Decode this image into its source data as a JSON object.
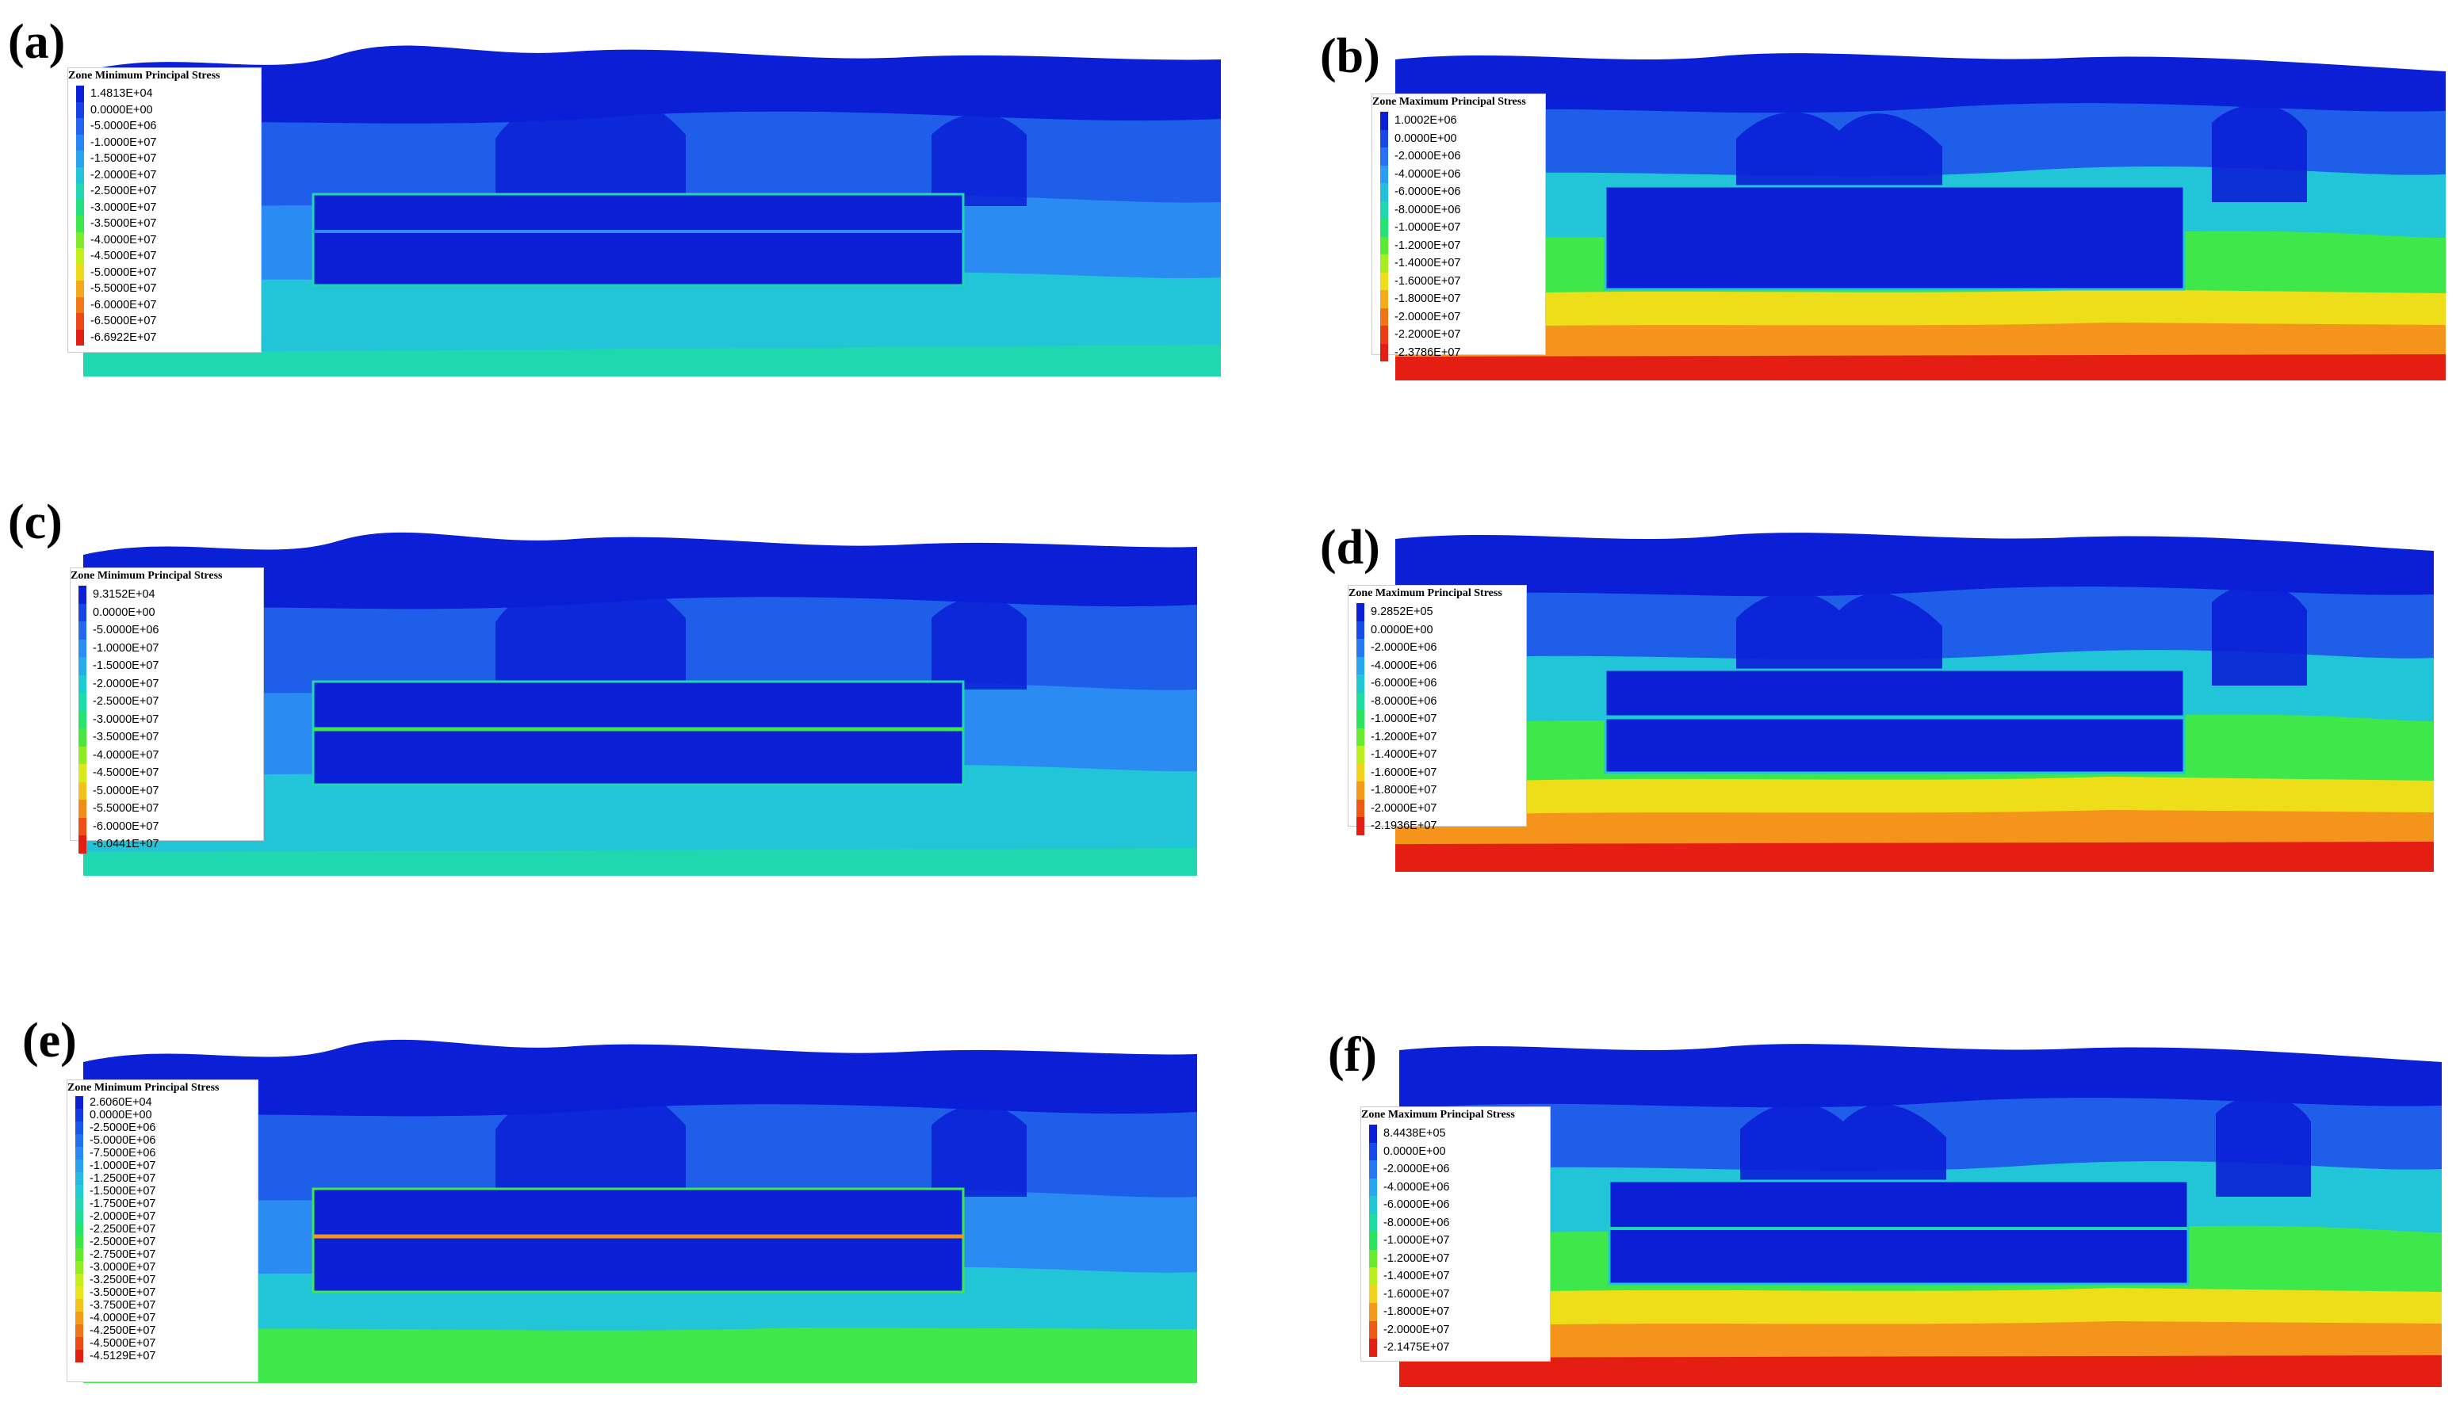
{
  "panels": [
    {
      "letter": "(a)",
      "legend_title": "Zone Minimum Principal Stress",
      "legend_entries": [
        "1.4813E+04",
        "0.0000E+00",
        "-5.0000E+06",
        "-1.0000E+07",
        "-1.5000E+07",
        "-2.0000E+07",
        "-2.5000E+07",
        "-3.0000E+07",
        "-3.5000E+07",
        "-4.0000E+07",
        "-4.5000E+07",
        "-5.0000E+07",
        "-5.5000E+07",
        "-6.0000E+07",
        "-6.5000E+07",
        "-6.6922E+07"
      ],
      "legend_colors": [
        "#0a1fd6",
        "#1542e6",
        "#2364f0",
        "#2b86f5",
        "#27a4ec",
        "#22c4d8",
        "#1fd8b0",
        "#22e080",
        "#3ee84a",
        "#7cec2a",
        "#c4ee1a",
        "#f0d81a",
        "#f4a81a",
        "#f27818",
        "#ee4816",
        "#e41e12"
      ]
    },
    {
      "letter": "(b)",
      "legend_title": "Zone Maximum Principal Stress",
      "legend_entries": [
        "1.0002E+06",
        "0.0000E+00",
        "-2.0000E+06",
        "-4.0000E+06",
        "-6.0000E+06",
        "-8.0000E+06",
        "-1.0000E+07",
        "-1.2000E+07",
        "-1.4000E+07",
        "-1.6000E+07",
        "-1.8000E+07",
        "-2.0000E+07",
        "-2.2000E+07",
        "-2.3786E+07"
      ],
      "legend_colors": [
        "#0a1fd6",
        "#1747e8",
        "#2672f2",
        "#2b9cf2",
        "#22c0dc",
        "#1fd8b0",
        "#26e472",
        "#5aea34",
        "#a6ee1e",
        "#eede1a",
        "#f4aa1a",
        "#f27218",
        "#ec3c14",
        "#e41e12"
      ]
    },
    {
      "letter": "(c)",
      "legend_title": "Zone Minimum Principal Stress",
      "legend_entries": [
        "9.3152E+04",
        "0.0000E+00",
        "-5.0000E+06",
        "-1.0000E+07",
        "-1.5000E+07",
        "-2.0000E+07",
        "-2.5000E+07",
        "-3.0000E+07",
        "-3.5000E+07",
        "-4.0000E+07",
        "-4.5000E+07",
        "-5.0000E+07",
        "-5.5000E+07",
        "-6.0000E+07",
        "-6.0441E+07"
      ],
      "legend_colors": [
        "#0a1fd6",
        "#1644e6",
        "#2468f0",
        "#2b8cf5",
        "#25acea",
        "#20cad2",
        "#1fdca4",
        "#26e46c",
        "#4ae83c",
        "#90ec22",
        "#d8ea1a",
        "#f4c01a",
        "#f28c18",
        "#ee5016",
        "#e41e12"
      ]
    },
    {
      "letter": "(d)",
      "legend_title": "Zone Maximum Principal Stress",
      "legend_entries": [
        "9.2852E+05",
        "0.0000E+00",
        "-2.0000E+06",
        "-4.0000E+06",
        "-6.0000E+06",
        "-8.0000E+06",
        "-1.0000E+07",
        "-1.2000E+07",
        "-1.4000E+07",
        "-1.6000E+07",
        "-1.8000E+07",
        "-2.0000E+07",
        "-2.1936E+07"
      ],
      "legend_colors": [
        "#0a1fd6",
        "#1849ea",
        "#2878f3",
        "#28a6ee",
        "#20c8d4",
        "#1fdca0",
        "#2ae45e",
        "#6aea2e",
        "#bcee1c",
        "#f2d21a",
        "#f49a18",
        "#ee5a16",
        "#e41e12"
      ]
    },
    {
      "letter": "(e)",
      "legend_title": "Zone Minimum Principal Stress",
      "legend_entries": [
        "2.6060E+04",
        "0.0000E+00",
        "-2.5000E+06",
        "-5.0000E+06",
        "-7.5000E+06",
        "-1.0000E+07",
        "-1.2500E+07",
        "-1.5000E+07",
        "-1.7500E+07",
        "-2.0000E+07",
        "-2.2500E+07",
        "-2.5000E+07",
        "-2.7500E+07",
        "-3.0000E+07",
        "-3.2500E+07",
        "-3.5000E+07",
        "-3.7500E+07",
        "-4.0000E+07",
        "-4.2500E+07",
        "-4.5000E+07",
        "-4.5129E+07"
      ],
      "legend_colors": [
        "#0a1fd6",
        "#113ae2",
        "#1a55ea",
        "#2370f2",
        "#2a8af5",
        "#29a2ee",
        "#24bae2",
        "#20ccd0",
        "#1fd8b2",
        "#1fe090",
        "#26e46a",
        "#3ae844",
        "#62ea2c",
        "#92ec20",
        "#c6ee1a",
        "#eae41a",
        "#f4c21a",
        "#f49c18",
        "#f07418",
        "#ec4a16",
        "#e41e12"
      ]
    },
    {
      "letter": "(f)",
      "legend_title": "Zone Maximum Principal Stress",
      "legend_entries": [
        "8.4438E+05",
        "0.0000E+00",
        "-2.0000E+06",
        "-4.0000E+06",
        "-6.0000E+06",
        "-8.0000E+06",
        "-1.0000E+07",
        "-1.2000E+07",
        "-1.4000E+07",
        "-1.6000E+07",
        "-1.8000E+07",
        "-2.0000E+07",
        "-2.1475E+07"
      ],
      "legend_colors": [
        "#0a1fd6",
        "#1849ea",
        "#2878f3",
        "#28a6ee",
        "#20c8d4",
        "#1fdca0",
        "#2ae45e",
        "#6aea2e",
        "#bcee1c",
        "#f2d21a",
        "#f49a18",
        "#ee5a16",
        "#e41e12"
      ]
    }
  ],
  "colors": {
    "deep_blue": "#0a1fd6",
    "mid_blue": "#1f5ee8",
    "light_blue": "#2a8cf2",
    "cyan": "#22c4d8",
    "teal": "#1fd8b0",
    "green": "#3ee84a",
    "yellow": "#eede1a",
    "orange": "#f4941a",
    "red": "#e41e12"
  }
}
